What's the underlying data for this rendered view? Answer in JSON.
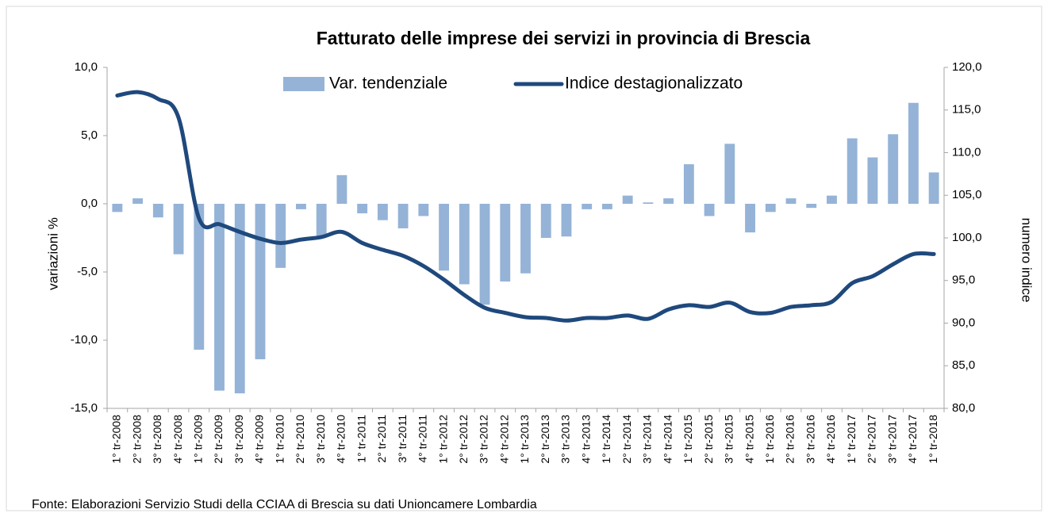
{
  "chart_data": {
    "type": "bar_line",
    "title": "Fatturato delle imprese dei  servizi in provincia di Brescia",
    "ylabel": "variazioni %",
    "y2label": "numero indice",
    "source": "Fonte: Elaborazioni  Servizio Studi della CCIAA di Brescia su dati Unioncamere Lombardia",
    "categories": [
      "1° tr-2008",
      "2° tr-2008",
      "3° tr-2008",
      "4° tr-2008",
      "1° tr-2009",
      "2° tr-2009",
      "3° tr-2009",
      "4° tr-2009",
      "1° tr-2010",
      "2° tr-2010",
      "3° tr-2010",
      "4° tr-2010",
      "1° tr-2011",
      "2° tr-2011",
      "3° tr-2011",
      "4° tr-2011",
      "1° tr-2012",
      "2° tr-2012",
      "3° tr-2012",
      "4° tr-2012",
      "1° tr-2013",
      "2° tr-2013",
      "3° tr-2013",
      "4° tr-2013",
      "1° tr-2014",
      "2° tr-2014",
      "3° tr-2014",
      "4° tr-2014",
      "1° tr-2015",
      "2° tr-2015",
      "3° tr-2015",
      "4° tr-2015",
      "1° tr-2016",
      "2° tr-2016",
      "3° tr-2016",
      "4° tr-2016",
      "1° tr-2017",
      "2° tr-2017",
      "3° tr-2017",
      "4° tr-2017",
      "1° tr-2018"
    ],
    "series": [
      {
        "name": "Var. tendenziale",
        "type": "bar",
        "color": "#95b3d7",
        "values": [
          -0.6,
          0.4,
          -1.0,
          -3.7,
          -10.7,
          -13.7,
          -13.9,
          -11.4,
          -4.7,
          -0.4,
          -2.4,
          2.1,
          -0.7,
          -1.2,
          -1.8,
          -0.9,
          -4.9,
          -5.9,
          -7.4,
          -5.7,
          -5.1,
          -2.5,
          -2.4,
          -0.4,
          -0.4,
          0.6,
          0.1,
          0.4,
          2.9,
          -0.9,
          4.4,
          -2.1,
          -0.6,
          0.4,
          -0.3,
          0.6,
          4.8,
          3.4,
          5.1,
          7.4,
          2.3
        ]
      },
      {
        "name": "Indice destagionalizzato",
        "type": "line",
        "axis": "y2",
        "color": "#1f497d",
        "values": [
          116.7,
          117.1,
          116.3,
          114.1,
          102.3,
          101.6,
          100.7,
          99.9,
          99.4,
          99.8,
          100.1,
          100.7,
          99.4,
          98.6,
          97.9,
          96.7,
          95.1,
          93.3,
          91.8,
          91.2,
          90.7,
          90.6,
          90.3,
          90.6,
          90.6,
          90.9,
          90.5,
          91.6,
          92.1,
          91.9,
          92.4,
          91.3,
          91.2,
          91.9,
          92.1,
          92.5,
          94.7,
          95.5,
          96.9,
          98.1,
          98.1
        ]
      }
    ],
    "ylim": [
      -15,
      10
    ],
    "yticks": [
      {
        "value": -15,
        "label": "-15,0"
      },
      {
        "value": -10,
        "label": "-10,0"
      },
      {
        "value": -5,
        "label": "-5,0"
      },
      {
        "value": 0,
        "label": "0,0"
      },
      {
        "value": 5,
        "label": "5,0"
      },
      {
        "value": 10,
        "label": "10,0"
      }
    ],
    "y2lim": [
      80,
      120
    ],
    "y2ticks": [
      {
        "value": 80,
        "label": "80,0"
      },
      {
        "value": 85,
        "label": "85,0"
      },
      {
        "value": 90,
        "label": "90,0"
      },
      {
        "value": 95,
        "label": "95,0"
      },
      {
        "value": 100,
        "label": "100,0"
      },
      {
        "value": 105,
        "label": "105,0"
      },
      {
        "value": 110,
        "label": "110,0"
      },
      {
        "value": 115,
        "label": "115,0"
      },
      {
        "value": 120,
        "label": "120,0"
      }
    ],
    "legend": "top"
  }
}
